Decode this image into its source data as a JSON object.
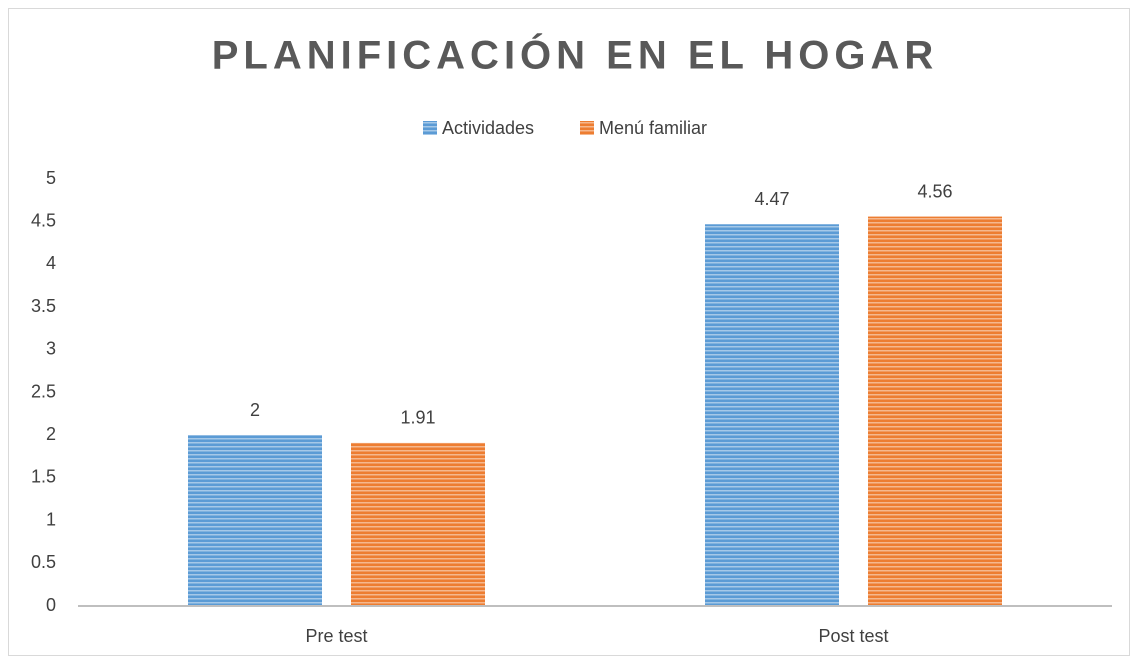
{
  "chart_data": {
    "type": "bar",
    "title": "PLANIFICACIÓN EN EL HOGAR",
    "categories": [
      "Pre test",
      "Post test"
    ],
    "series": [
      {
        "name": "Actividades",
        "color": "#5b9bd5",
        "values": [
          2,
          4.47
        ]
      },
      {
        "name": "Menú familiar",
        "color": "#ed7d31",
        "values": [
          1.91,
          4.56
        ]
      }
    ],
    "ylim": [
      0,
      5
    ],
    "yticks": [
      0,
      0.5,
      1,
      1.5,
      2,
      2.5,
      3,
      3.5,
      4,
      4.5,
      5
    ],
    "grid": false,
    "legend": "top"
  }
}
